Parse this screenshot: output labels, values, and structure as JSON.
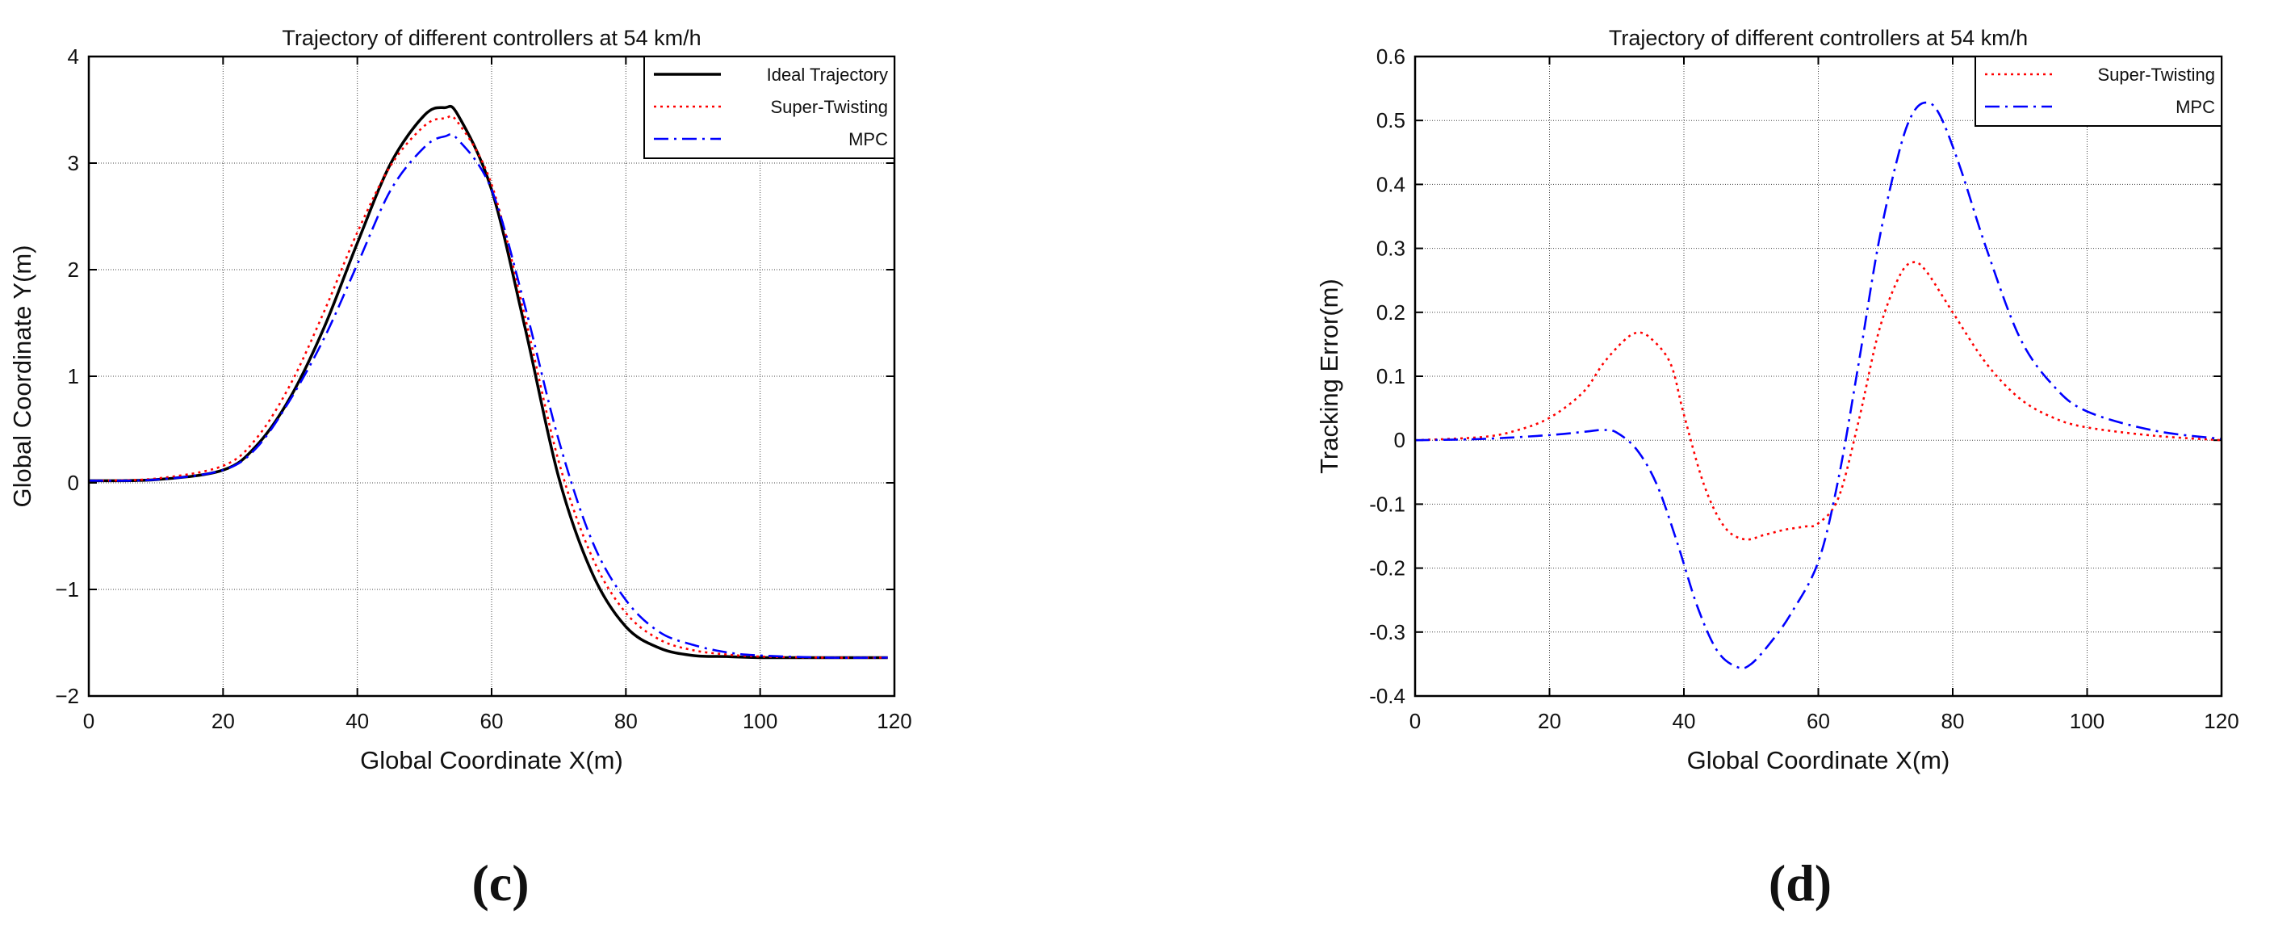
{
  "chart_data": [
    {
      "type": "line",
      "title": "Trajectory of different controllers at 54 km/h",
      "xlabel": "Global Coordinate X(m)",
      "ylabel": "Global Coordinate Y(m)",
      "xlim": [
        0,
        120
      ],
      "ylim": [
        -2,
        4
      ],
      "x_ticks": [
        "0",
        "20",
        "40",
        "60",
        "80",
        "100",
        "120"
      ],
      "y_ticks": [
        "−2",
        "−1",
        "0",
        "1",
        "2",
        "3",
        "4"
      ],
      "grid": true,
      "legend_position": "top-right",
      "caption": "(c)",
      "series": [
        {
          "name": "Ideal Trajectory",
          "color": "#000000",
          "style": "solid",
          "x": [
            0,
            10,
            20,
            25,
            30,
            35,
            40,
            45,
            50,
            53,
            55,
            60,
            65,
            70,
            75,
            80,
            85,
            90,
            95,
            100,
            110,
            119
          ],
          "y": [
            0.02,
            0.03,
            0.12,
            0.35,
            0.8,
            1.45,
            2.25,
            3.0,
            3.45,
            3.52,
            3.45,
            2.75,
            1.45,
            0.05,
            -0.85,
            -1.35,
            -1.55,
            -1.62,
            -1.63,
            -1.64,
            -1.64,
            -1.64
          ]
        },
        {
          "name": "Super-Twisting",
          "color": "#ff0000",
          "style": "dotted",
          "x": [
            0,
            10,
            20,
            25,
            30,
            35,
            40,
            45,
            50,
            53,
            55,
            60,
            65,
            70,
            75,
            80,
            85,
            90,
            95,
            100,
            110,
            119
          ],
          "y": [
            0.02,
            0.04,
            0.16,
            0.42,
            0.92,
            1.6,
            2.35,
            2.98,
            3.35,
            3.42,
            3.38,
            2.8,
            1.55,
            0.2,
            -0.7,
            -1.22,
            -1.47,
            -1.57,
            -1.61,
            -1.63,
            -1.64,
            -1.64
          ]
        },
        {
          "name": "MPC",
          "color": "#0000ff",
          "style": "dashdot",
          "x": [
            0,
            10,
            20,
            25,
            30,
            35,
            40,
            45,
            50,
            53,
            55,
            60,
            65,
            70,
            75,
            80,
            85,
            90,
            95,
            100,
            110,
            119
          ],
          "y": [
            0.02,
            0.03,
            0.12,
            0.33,
            0.78,
            1.35,
            2.05,
            2.75,
            3.15,
            3.25,
            3.22,
            2.75,
            1.65,
            0.4,
            -0.55,
            -1.1,
            -1.4,
            -1.52,
            -1.59,
            -1.62,
            -1.64,
            -1.64
          ]
        }
      ]
    },
    {
      "type": "line",
      "title": "Trajectory of different controllers at 54 km/h",
      "xlabel": "Global Coordinate X(m)",
      "ylabel": "Tracking Error(m)",
      "xlim": [
        0,
        120
      ],
      "ylim": [
        -0.4,
        0.6
      ],
      "x_ticks": [
        "0",
        "20",
        "40",
        "60",
        "80",
        "100",
        "120"
      ],
      "y_ticks": [
        "-0.4",
        "-0.3",
        "-0.2",
        "-0.1",
        "0",
        "0.1",
        "0.2",
        "0.3",
        "0.4",
        "0.5",
        "0.6"
      ],
      "grid": true,
      "legend_position": "top-right",
      "caption": "(d)",
      "series": [
        {
          "name": "Super-Twisting",
          "color": "#ff0000",
          "style": "dotted",
          "x": [
            0,
            10,
            15,
            20,
            25,
            28,
            31,
            33,
            35,
            38,
            40,
            43,
            46,
            49,
            52,
            55,
            58,
            60,
            63,
            66,
            69,
            72,
            74,
            76,
            80,
            85,
            90,
            95,
            100,
            110,
            120
          ],
          "y": [
            0.0,
            0.005,
            0.015,
            0.035,
            0.075,
            0.12,
            0.155,
            0.168,
            0.16,
            0.12,
            0.04,
            -0.07,
            -0.135,
            -0.155,
            -0.148,
            -0.14,
            -0.135,
            -0.13,
            -0.09,
            0.03,
            0.17,
            0.255,
            0.278,
            0.265,
            0.2,
            0.12,
            0.065,
            0.035,
            0.02,
            0.007,
            0.0
          ]
        },
        {
          "name": "MPC",
          "color": "#0000ff",
          "style": "dashdot",
          "x": [
            0,
            10,
            20,
            25,
            28,
            30,
            33,
            36,
            39,
            42,
            45,
            48,
            50,
            53,
            56,
            60,
            63,
            66,
            69,
            72,
            74,
            76,
            78,
            81,
            85,
            90,
            95,
            100,
            110,
            120
          ],
          "y": [
            0.0,
            0.002,
            0.008,
            0.013,
            0.016,
            0.012,
            -0.015,
            -0.07,
            -0.16,
            -0.26,
            -0.33,
            -0.355,
            -0.35,
            -0.315,
            -0.27,
            -0.19,
            -0.06,
            0.12,
            0.31,
            0.45,
            0.51,
            0.528,
            0.51,
            0.43,
            0.3,
            0.16,
            0.085,
            0.045,
            0.015,
            0.002
          ]
        }
      ]
    }
  ]
}
